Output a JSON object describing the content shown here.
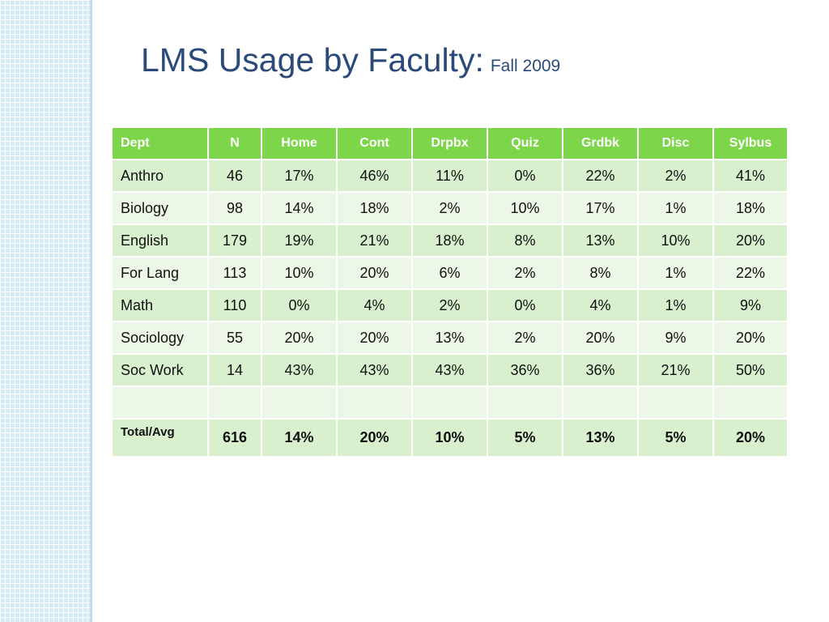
{
  "slide": {
    "title_main": "LMS Usage by Faculty:",
    "title_sub": "Fall 2009"
  },
  "colors": {
    "title": "#2b4a7a",
    "header_bg": "#7dd64a",
    "row_dark": "#d8f0cd",
    "row_light": "#ecf7e7",
    "side_strip": "#d4ebf6"
  },
  "table": {
    "columns": [
      "Dept",
      "N",
      "Home",
      "Cont",
      "Drpbx",
      "Quiz",
      "Grdbk",
      "Disc",
      "Sylbus"
    ],
    "rows": [
      [
        "Anthro",
        "46",
        "17%",
        "46%",
        "11%",
        "0%",
        "22%",
        "2%",
        "41%"
      ],
      [
        "Biology",
        "98",
        "14%",
        "18%",
        "2%",
        "10%",
        "17%",
        "1%",
        "18%"
      ],
      [
        "English",
        "179",
        "19%",
        "21%",
        "18%",
        "8%",
        "13%",
        "10%",
        "20%"
      ],
      [
        "For Lang",
        "113",
        "10%",
        "20%",
        "6%",
        "2%",
        "8%",
        "1%",
        "22%"
      ],
      [
        "Math",
        "110",
        "0%",
        "4%",
        "2%",
        "0%",
        "4%",
        "1%",
        "9%"
      ],
      [
        "Sociology",
        "55",
        "20%",
        "20%",
        "13%",
        "2%",
        "20%",
        "9%",
        "20%"
      ],
      [
        "Soc Work",
        "14",
        "43%",
        "43%",
        "43%",
        "36%",
        "36%",
        "21%",
        "50%"
      ],
      [
        "",
        "",
        "",
        "",
        "",
        "",
        "",
        "",
        ""
      ],
      [
        "Total/Avg",
        "616",
        "14%",
        "20%",
        "10%",
        "5%",
        "13%",
        "5%",
        "20%"
      ]
    ]
  }
}
